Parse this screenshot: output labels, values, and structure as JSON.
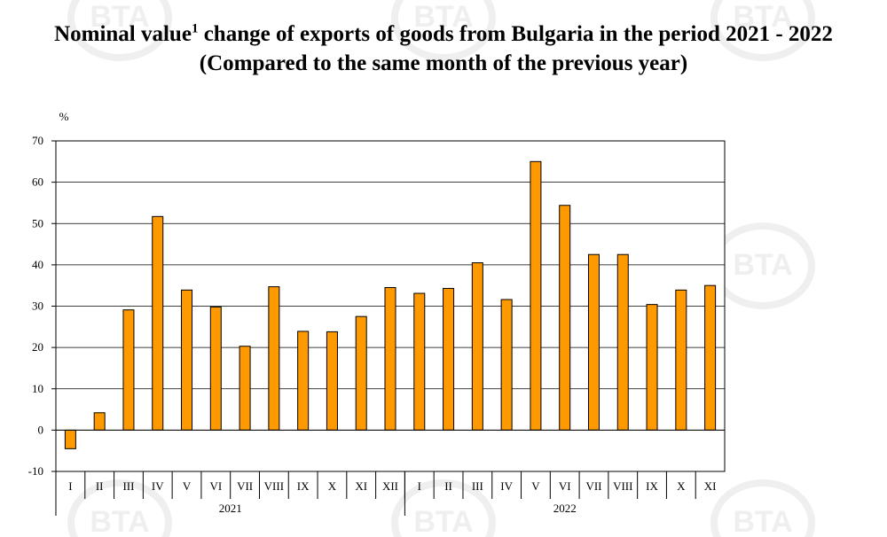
{
  "title": {
    "line1_a": "Nominal value",
    "line1_sup": "1",
    "line1_b": " change of exports of goods from Bulgaria in the period 2021 - 2022",
    "line2": "(Compared to the same month of the previous year)"
  },
  "watermark_text": "BTA",
  "chart_data": {
    "type": "bar",
    "title": "Nominal value change of exports of goods from Bulgaria in the period 2021 - 2022",
    "subtitle": "(Compared to the same month of the previous year)",
    "ylabel": "%",
    "xlabel": "",
    "ylim": [
      -10,
      70
    ],
    "yticks": [
      -10,
      0,
      10,
      20,
      30,
      40,
      50,
      60,
      70
    ],
    "grid": true,
    "legend": "none",
    "bar_color": "#FF9900",
    "bar_edge_color": "#000000",
    "groups": [
      {
        "label": "2021",
        "categories": [
          "I",
          "II",
          "III",
          "IV",
          "V",
          "VI",
          "VII",
          "VIII",
          "IX",
          "X",
          "XI",
          "XII"
        ]
      },
      {
        "label": "2022",
        "categories": [
          "I",
          "II",
          "III",
          "IV",
          "V",
          "VI",
          "VII",
          "VIII",
          "IX",
          "X",
          "XI"
        ]
      }
    ],
    "categories": [
      "I",
      "II",
      "III",
      "IV",
      "V",
      "VI",
      "VII",
      "VIII",
      "IX",
      "X",
      "XI",
      "XII",
      "I",
      "II",
      "III",
      "IV",
      "V",
      "VI",
      "VII",
      "VIII",
      "IX",
      "X",
      "XI"
    ],
    "values": [
      -4.5,
      4.2,
      29.1,
      51.7,
      33.9,
      29.8,
      20.3,
      34.7,
      23.9,
      23.8,
      27.5,
      34.5,
      33.1,
      34.3,
      40.5,
      31.6,
      65.0,
      54.4,
      42.5,
      42.5,
      30.4,
      33.9,
      35.0
    ]
  }
}
